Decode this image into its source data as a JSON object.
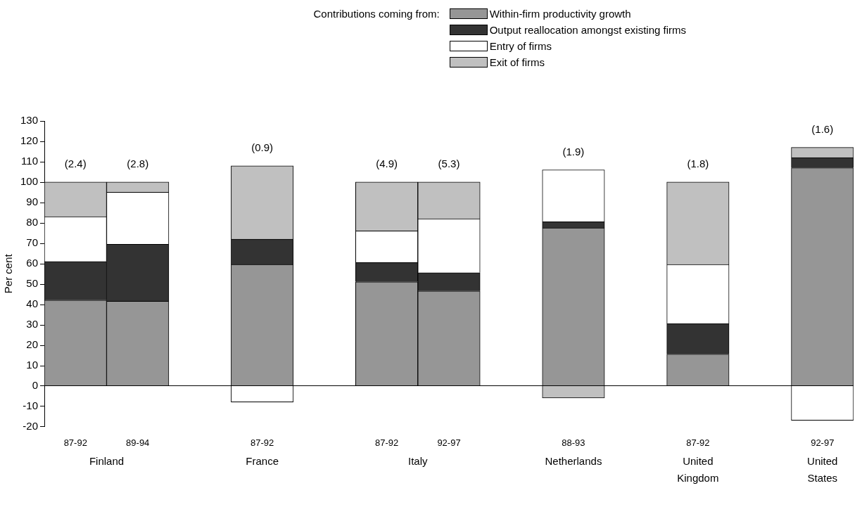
{
  "chart_data": {
    "type": "bar",
    "stacked": true,
    "legend_title": "Contributions coming from:",
    "ylabel": "Per cent",
    "categories": [
      "87-92",
      "89-94",
      null,
      "87-92",
      null,
      "87-92",
      "92-97",
      null,
      "88-93",
      null,
      "87-92",
      null,
      "92-97"
    ],
    "series": [
      {
        "name": "Within-firm productivity growth",
        "color": "#969696",
        "values": [
          42,
          41.5,
          null,
          59.5,
          null,
          51,
          46.5,
          null,
          77.5,
          null,
          15.5,
          null,
          107
        ]
      },
      {
        "name": "Output reallocation amongst existing firms",
        "color": "#333333",
        "values": [
          19,
          28,
          null,
          12.5,
          null,
          9.5,
          9,
          null,
          3,
          null,
          15,
          null,
          5
        ]
      },
      {
        "name": "Entry of firms",
        "color": "#ffffff",
        "values": [
          22,
          25.5,
          null,
          -8,
          null,
          15.5,
          26.5,
          null,
          25.5,
          null,
          29,
          null,
          -17
        ]
      },
      {
        "name": "Exit of firms",
        "color": "#c0c0c0",
        "values": [
          17,
          5,
          null,
          36,
          null,
          24,
          18,
          null,
          -6,
          null,
          40.5,
          null,
          5
        ]
      }
    ],
    "annotations": [
      "(2.4)",
      "(2.8)",
      "(0.9)",
      "(4.9)",
      "(5.3)",
      "(1.9)",
      "(1.8)",
      "(1.6)",
      "Finland",
      "France",
      "Italy",
      "Netherlands",
      "United Kingdom",
      "United States"
    ],
    "ylim": [
      -20,
      130
    ],
    "yticks": [
      -20,
      -10,
      0,
      10,
      20,
      30,
      40,
      50,
      60,
      70,
      80,
      90,
      100,
      110,
      120,
      130
    ],
    "legend": "top right"
  }
}
